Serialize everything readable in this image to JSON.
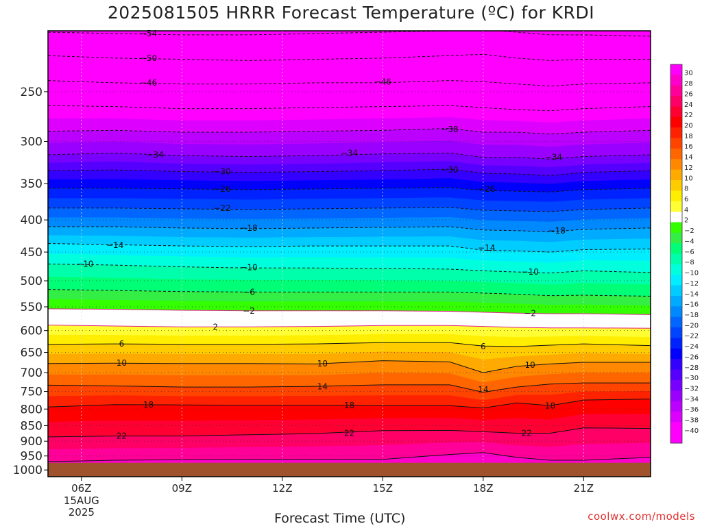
{
  "chart_data": {
    "type": "heatmap",
    "title": "2025081505 HRRR Forecast Temperature (ºC) for KRDI",
    "xlabel": "Forecast Time (UTC)",
    "x_ticks": [
      "06Z",
      "09Z",
      "12Z",
      "15Z",
      "18Z",
      "21Z"
    ],
    "x_first_tick_sublabels": [
      "15AUG",
      "2025"
    ],
    "x_range_hours": [
      5,
      23
    ],
    "y_ticks": [
      250,
      300,
      350,
      400,
      450,
      500,
      550,
      600,
      650,
      700,
      750,
      800,
      850,
      900,
      950,
      1000
    ],
    "ylim_hpa": [
      200,
      1025
    ],
    "y_scale": "log",
    "surface_pressure_hpa": 974,
    "x_hours": [
      5,
      7,
      9,
      11,
      13,
      15,
      17,
      18,
      19,
      20,
      21,
      23
    ],
    "isotherms": [
      {
        "value": -54,
        "p": [
          201,
          202,
          203,
          203,
          202,
          201,
          200,
          199,
          201,
          203,
          203,
          204
        ]
      },
      {
        "value": -50,
        "p": [
          219,
          221,
          222,
          223,
          222,
          221,
          219,
          218,
          221,
          223,
          222,
          222
        ]
      },
      {
        "value": -46,
        "p": [
          240,
          242,
          243,
          243,
          242,
          242,
          240,
          241,
          243,
          245,
          243,
          242
        ]
      },
      {
        "value": -42,
        "p": [
          263,
          264,
          266,
          266,
          265,
          264,
          263,
          265,
          267,
          268,
          266,
          264
        ]
      },
      {
        "value": -38,
        "p": [
          289,
          288,
          290,
          290,
          289,
          288,
          286,
          290,
          290,
          292,
          290,
          288
        ]
      },
      {
        "value": -34,
        "p": [
          315,
          313,
          316,
          317,
          316,
          314,
          313,
          318,
          318,
          320,
          317,
          315
        ]
      },
      {
        "value": -30,
        "p": [
          334,
          333,
          335,
          336,
          335,
          334,
          332,
          337,
          338,
          340,
          336,
          334
        ]
      },
      {
        "value": -26,
        "p": [
          356,
          356,
          357,
          358,
          357,
          356,
          355,
          359,
          360,
          361,
          358,
          356
        ]
      },
      {
        "value": -22,
        "p": [
          383,
          383,
          384,
          385,
          384,
          383,
          382,
          386,
          387,
          388,
          385,
          383
        ]
      },
      {
        "value": -18,
        "p": [
          410,
          410,
          412,
          413,
          412,
          411,
          410,
          415,
          416,
          418,
          414,
          412
        ]
      },
      {
        "value": -14,
        "p": [
          436,
          438,
          440,
          441,
          440,
          440,
          440,
          447,
          448,
          450,
          446,
          445
        ]
      },
      {
        "value": -10,
        "p": [
          470,
          472,
          475,
          477,
          477,
          478,
          479,
          482,
          484,
          486,
          482,
          485
        ]
      },
      {
        "value": -6,
        "p": [
          516,
          518,
          520,
          521,
          521,
          521,
          521,
          523,
          525,
          528,
          527,
          529
        ]
      },
      {
        "value": -2,
        "p": [
          554,
          555,
          557,
          558,
          558,
          558,
          559,
          561,
          563,
          564,
          564,
          566
        ]
      },
      {
        "value": 2,
        "p": [
          588,
          590,
          592,
          592,
          591,
          589,
          589,
          591,
          593,
          594,
          594,
          595
        ]
      },
      {
        "value": 6,
        "p": [
          631,
          630,
          631,
          631,
          630,
          627,
          627,
          635,
          636,
          633,
          630,
          634
        ]
      },
      {
        "value": 10,
        "p": [
          677,
          676,
          677,
          677,
          678,
          670,
          673,
          700,
          684,
          678,
          674,
          674
        ]
      },
      {
        "value": 14,
        "p": [
          733,
          735,
          738,
          738,
          736,
          732,
          732,
          752,
          738,
          730,
          727,
          727
        ]
      },
      {
        "value": 18,
        "p": [
          794,
          787,
          788,
          789,
          789,
          790,
          790,
          797,
          782,
          790,
          774,
          771
        ]
      },
      {
        "value": 22,
        "p": [
          886,
          883,
          883,
          879,
          875,
          866,
          865,
          869,
          874,
          874,
          857,
          859
        ]
      },
      {
        "value": 26,
        "p": [
          970,
          965,
          963,
          962,
          962,
          962,
          945,
          938,
          955,
          965,
          965,
          955
        ]
      }
    ],
    "contour_labels": [
      {
        "value": -54,
        "x": 8.0,
        "p": 202
      },
      {
        "value": -50,
        "x": 8.0,
        "p": 221
      },
      {
        "value": -46,
        "x": 8.0,
        "p": 242
      },
      {
        "value": -46,
        "x": 15.0,
        "p": 241
      },
      {
        "value": -38,
        "x": 17.0,
        "p": 287
      },
      {
        "value": -34,
        "x": 8.2,
        "p": 315
      },
      {
        "value": -34,
        "x": 14.0,
        "p": 313
      },
      {
        "value": -34,
        "x": 20.1,
        "p": 318
      },
      {
        "value": -30,
        "x": 10.2,
        "p": 335
      },
      {
        "value": -30,
        "x": 17.0,
        "p": 333
      },
      {
        "value": -26,
        "x": 10.2,
        "p": 357
      },
      {
        "value": -26,
        "x": 18.1,
        "p": 357
      },
      {
        "value": -22,
        "x": 10.2,
        "p": 383
      },
      {
        "value": -18,
        "x": 11.0,
        "p": 412
      },
      {
        "value": -18,
        "x": 20.2,
        "p": 416
      },
      {
        "value": -14,
        "x": 7.0,
        "p": 439
      },
      {
        "value": -14,
        "x": 18.1,
        "p": 443
      },
      {
        "value": -10,
        "x": 6.1,
        "p": 470
      },
      {
        "value": -10,
        "x": 11.0,
        "p": 476
      },
      {
        "value": -10,
        "x": 19.4,
        "p": 484
      },
      {
        "value": -6,
        "x": 11.0,
        "p": 521
      },
      {
        "value": -2,
        "x": 11.0,
        "p": 558
      },
      {
        "value": -2,
        "x": 19.4,
        "p": 563
      },
      {
        "value": 2,
        "x": 10.0,
        "p": 592
      },
      {
        "value": 6,
        "x": 7.2,
        "p": 630
      },
      {
        "value": 6,
        "x": 18.0,
        "p": 636
      },
      {
        "value": 10,
        "x": 7.2,
        "p": 676
      },
      {
        "value": 10,
        "x": 13.2,
        "p": 677
      },
      {
        "value": 10,
        "x": 19.4,
        "p": 681
      },
      {
        "value": 14,
        "x": 13.2,
        "p": 737
      },
      {
        "value": 14,
        "x": 18.0,
        "p": 745
      },
      {
        "value": 18,
        "x": 8.0,
        "p": 788
      },
      {
        "value": 18,
        "x": 14.0,
        "p": 789
      },
      {
        "value": 18,
        "x": 20.0,
        "p": 790
      },
      {
        "value": 22,
        "x": 7.2,
        "p": 883
      },
      {
        "value": 22,
        "x": 14.0,
        "p": 874
      },
      {
        "value": 22,
        "x": 19.3,
        "p": 874
      }
    ],
    "colorbar": {
      "labels": [
        30,
        28,
        26,
        24,
        22,
        20,
        18,
        16,
        14,
        12,
        10,
        8,
        6,
        4,
        2,
        -2,
        -4,
        -6,
        -8,
        -10,
        -12,
        -14,
        -16,
        -18,
        -20,
        -22,
        -24,
        -26,
        -28,
        -30,
        -32,
        -34,
        -36,
        -38,
        -40
      ],
      "colors": [
        "#ff00ff",
        "#ff00cc",
        "#ff0099",
        "#ff0066",
        "#ff0033",
        "#ff0000",
        "#ff2200",
        "#ff4400",
        "#ff6600",
        "#ff8800",
        "#ffaa00",
        "#ffcc00",
        "#ffee00",
        "#ffff33",
        "#ffffff",
        "#33ff00",
        "#33ee44",
        "#00ff77",
        "#00ffaa",
        "#00ffdd",
        "#00eeff",
        "#00ccff",
        "#00aaff",
        "#0088ff",
        "#0066ff",
        "#0044ff",
        "#0022ff",
        "#0000ff",
        "#3300ff",
        "#5500ff",
        "#7700ff",
        "#9900ff",
        "#bb00ff",
        "#dd00ff",
        "#ff00ff",
        "#ff00ff"
      ]
    },
    "ground_color": "#a0522d",
    "dashed_for_negative": true,
    "grid": "dotted"
  },
  "footer": {
    "credit": "coolwx.com/models"
  }
}
